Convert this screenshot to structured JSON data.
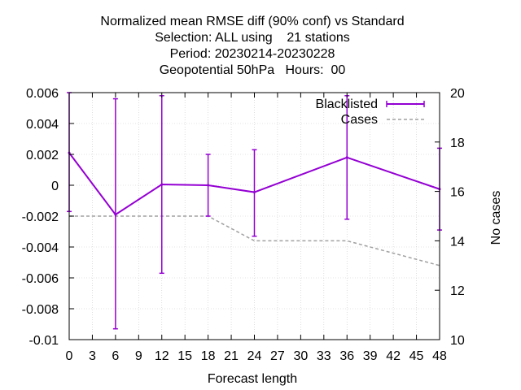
{
  "chart_data": {
    "type": "line",
    "title_lines": [
      "Normalized mean RMSE diff (90% conf) vs Standard",
      "Selection: ALL using    21 stations",
      "Period: 20230214-20230228",
      "Geopotential 50hPa   Hours:  00"
    ],
    "xlabel": "Forecast length",
    "y2label": "No cases",
    "xlim": [
      0,
      48
    ],
    "ylim": [
      -0.01,
      0.006
    ],
    "y2lim": [
      10,
      20
    ],
    "xticks": [
      "0",
      "3",
      "6",
      "9",
      "12",
      "15",
      "18",
      "21",
      "24",
      "27",
      "30",
      "33",
      "36",
      "39",
      "42",
      "45",
      "48"
    ],
    "yticks": [
      "0.006",
      "0.004",
      "0.002",
      "0",
      "-0.002",
      "-0.004",
      "-0.006",
      "-0.008",
      "-0.01"
    ],
    "y2ticks": [
      "20",
      "18",
      "16",
      "14",
      "12",
      "10"
    ],
    "grid": true,
    "legend_position": "top-right",
    "series": [
      {
        "name": "Blacklisted",
        "color": "#9400d3",
        "axis": "y1",
        "x": [
          0,
          6,
          12,
          18,
          24,
          36,
          48
        ],
        "y": [
          0.0021,
          -0.0019,
          5e-05,
          0.0,
          -0.00045,
          0.0018,
          -0.00025
        ],
        "err_low": [
          -0.0017,
          -0.0093,
          -0.0057,
          -0.002,
          -0.0033,
          -0.0022,
          -0.0029
        ],
        "err_high": [
          0.006,
          0.0056,
          0.0058,
          0.002,
          0.0023,
          0.0058,
          0.0024
        ]
      },
      {
        "name": "Cases",
        "color": "#a0a0a0",
        "axis": "y2",
        "x": [
          0,
          6,
          12,
          18,
          24,
          36,
          48
        ],
        "y": [
          15,
          15,
          15,
          15,
          14,
          14,
          13
        ]
      }
    ]
  }
}
